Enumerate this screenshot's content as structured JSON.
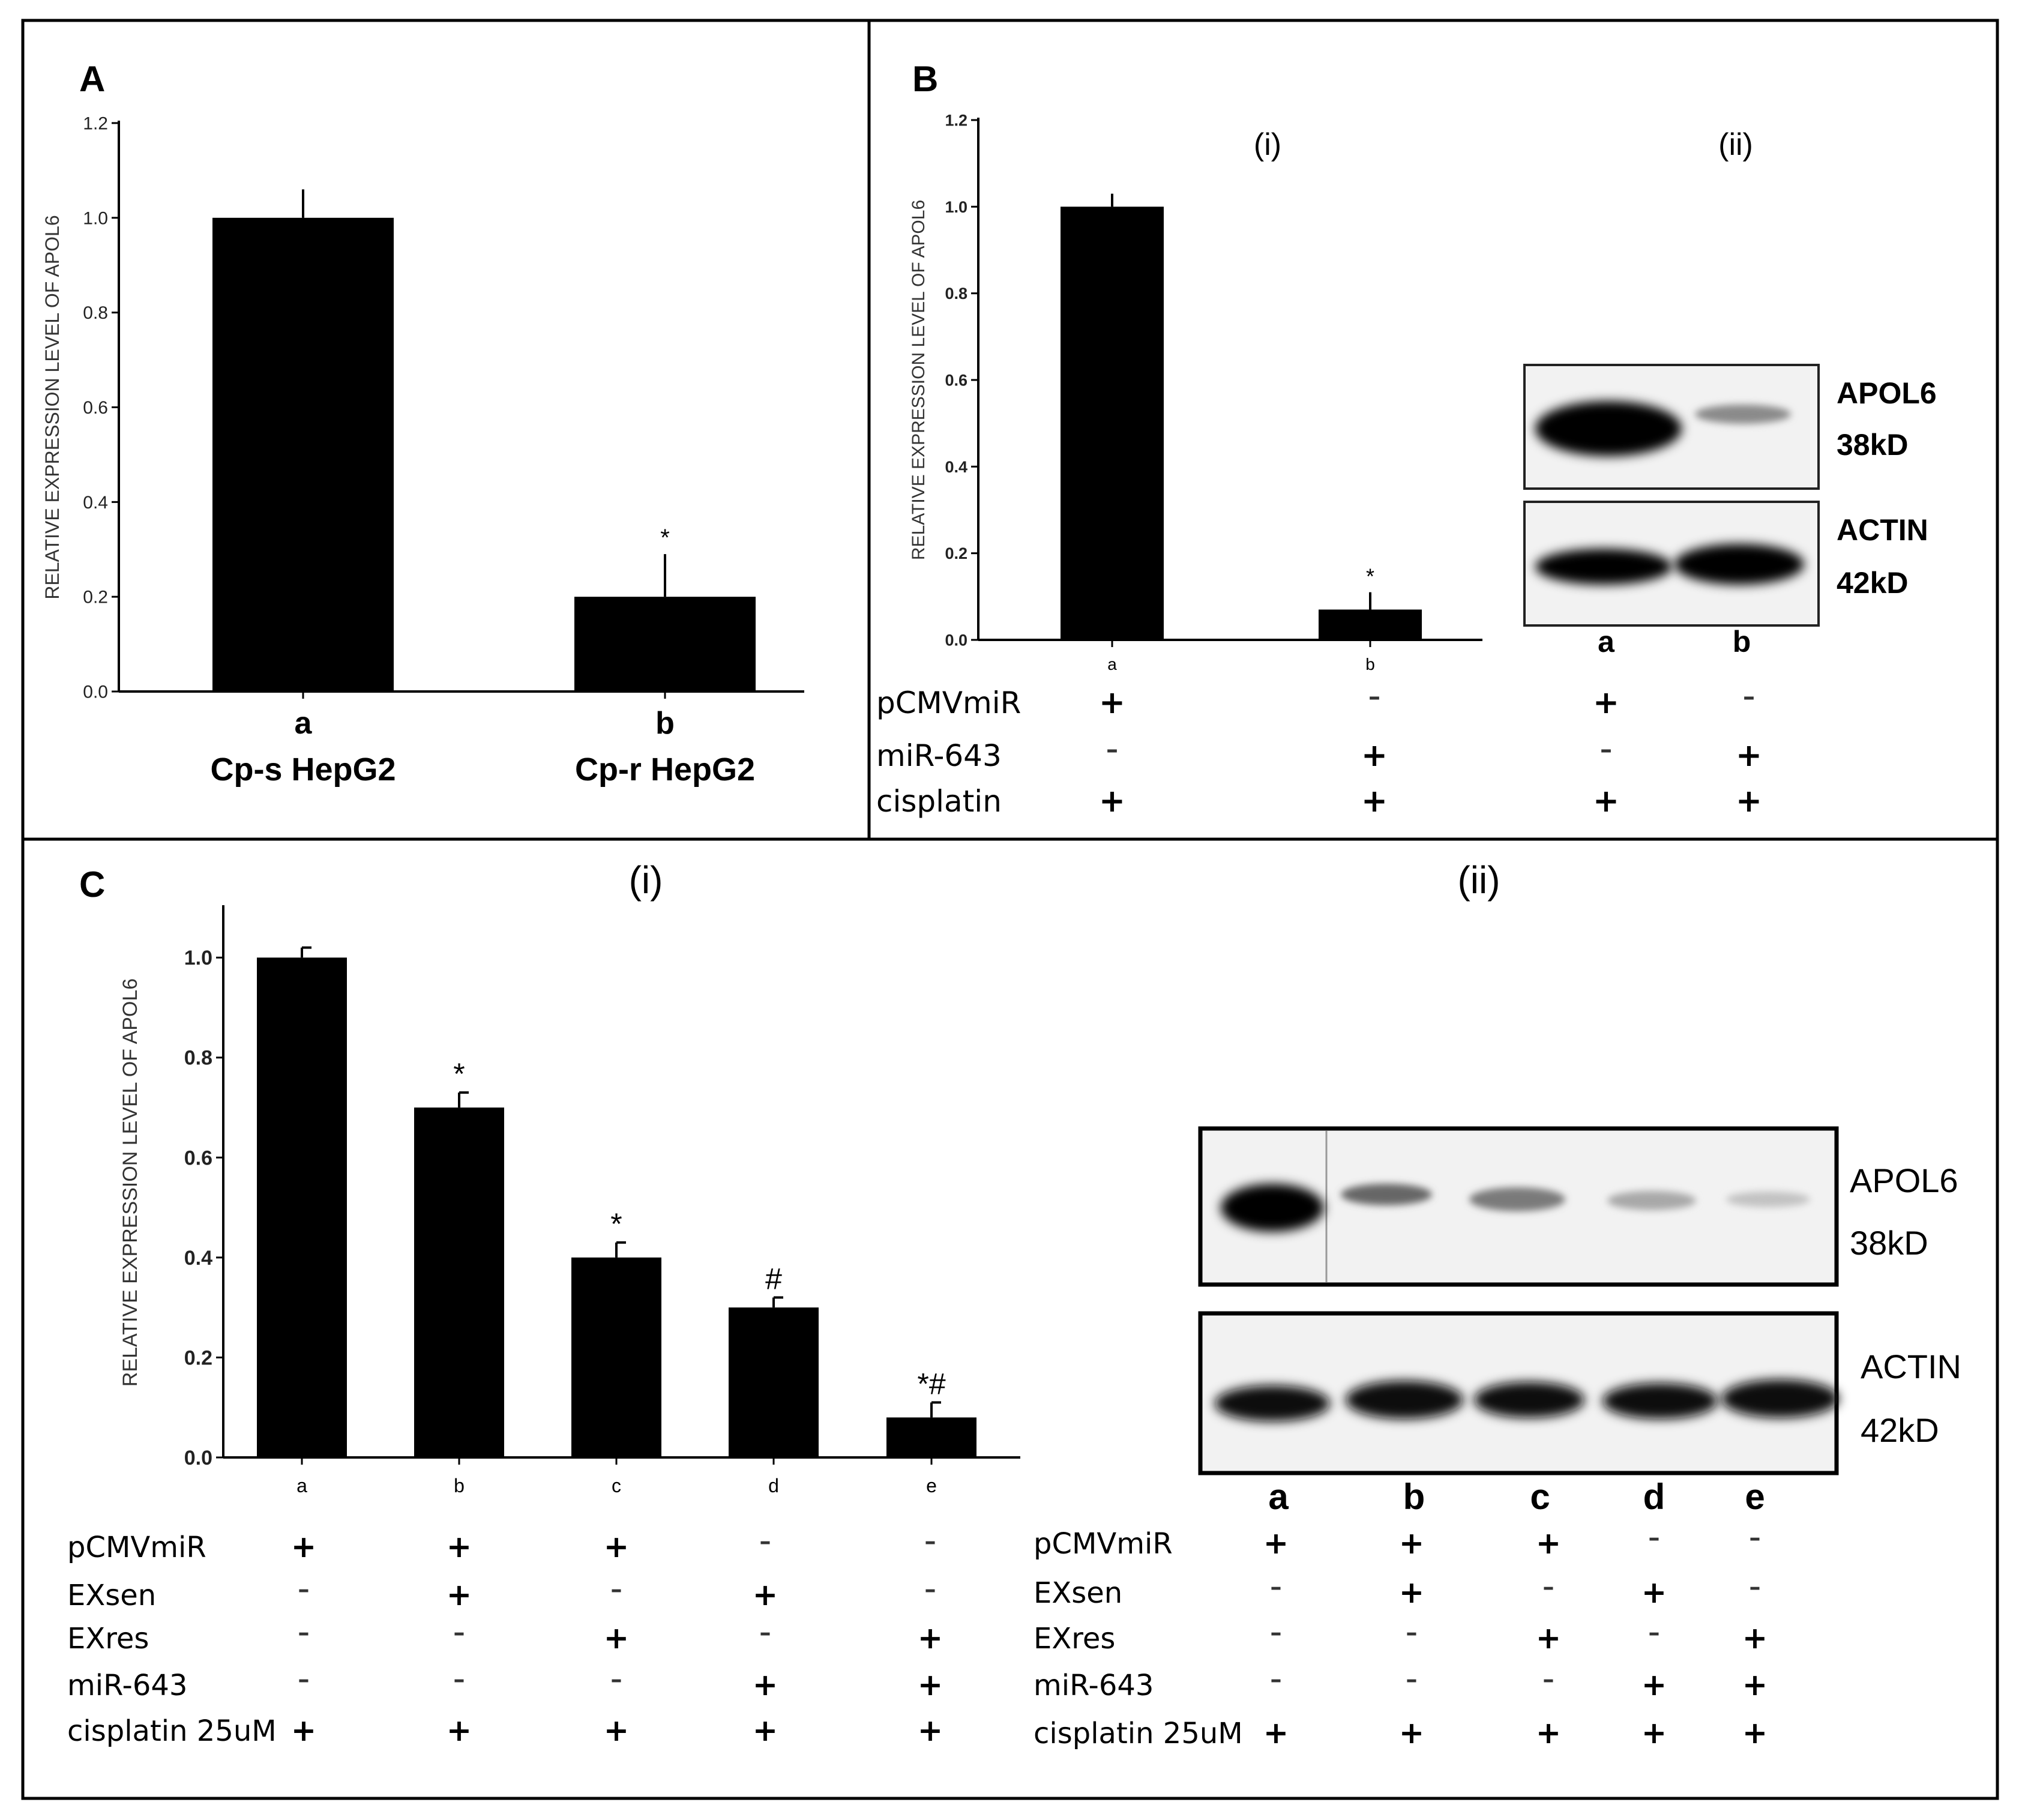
{
  "panels": {
    "A": {
      "letter": "A",
      "chart_data": {
        "type": "bar",
        "ylabel": "RELATIVE EXPRESSION LEVEL OF APOL6",
        "ylim": [
          0,
          1.2
        ],
        "yticks": [
          "0.0",
          "0.2",
          "0.4",
          "0.6",
          "0.8",
          "1.0",
          "1.2"
        ],
        "categories": [
          "a",
          "b"
        ],
        "category_names": [
          "Cp-s HepG2",
          "Cp-r HepG2"
        ],
        "values": [
          1.0,
          0.2
        ],
        "errors": [
          0.06,
          0.09
        ],
        "annotations": [
          "",
          "*"
        ],
        "bar_color": "#000000"
      }
    },
    "B": {
      "letter": "B",
      "sub_i": "(i)",
      "sub_ii": "(ii)",
      "chart_data": {
        "type": "bar",
        "ylabel": "RELATIVE EXPRESSION LEVEL OF APOL6",
        "ylim": [
          0,
          1.2
        ],
        "yticks": [
          "0.0",
          "0.2",
          "0.4",
          "0.6",
          "0.8",
          "1.0",
          "1.2"
        ],
        "categories": [
          "a",
          "b"
        ],
        "values": [
          1.0,
          0.07
        ],
        "errors": [
          0.03,
          0.04
        ],
        "annotations": [
          "",
          "*"
        ],
        "bar_color": "#000000"
      },
      "conditions": [
        {
          "label": "pCMVmiR",
          "signs": [
            "+",
            "–"
          ]
        },
        {
          "label": "miR-643",
          "signs": [
            "–",
            "+"
          ]
        },
        {
          "label": "cisplatin",
          "signs": [
            "+",
            "+"
          ]
        }
      ],
      "blot": {
        "lanes": [
          "a",
          "b"
        ],
        "bands": [
          {
            "name": "APOL6",
            "size": "38kD"
          },
          {
            "name": "ACTIN",
            "size": "42kD"
          }
        ],
        "conditions": [
          {
            "signs": [
              "+",
              "–"
            ]
          },
          {
            "signs": [
              "–",
              "+"
            ]
          },
          {
            "signs": [
              "+",
              "+"
            ]
          }
        ]
      }
    },
    "C": {
      "letter": "C",
      "sub_i": "(i)",
      "sub_ii": "(ii)",
      "chart_data": {
        "type": "bar",
        "ylabel": "RELATIVE EXPRESSION LEVEL OF APOL6",
        "ylim": [
          0,
          1.1
        ],
        "yticks": [
          "0.0",
          "0.2",
          "0.4",
          "0.6",
          "0.8",
          "1.0"
        ],
        "categories": [
          "a",
          "b",
          "c",
          "d",
          "e"
        ],
        "values": [
          1.0,
          0.7,
          0.4,
          0.3,
          0.08
        ],
        "errors": [
          0.02,
          0.03,
          0.03,
          0.02,
          0.03
        ],
        "annotations": [
          "",
          "*",
          "*",
          "#",
          "*#"
        ],
        "bar_color": "#000000"
      },
      "conditions": [
        {
          "label": "pCMVmiR",
          "signs": [
            "+",
            "+",
            "+",
            "–",
            "–"
          ]
        },
        {
          "label": "EXsen",
          "signs": [
            "–",
            "+",
            "–",
            "+",
            "–"
          ]
        },
        {
          "label": "EXres",
          "signs": [
            "–",
            "–",
            "+",
            "–",
            "+"
          ]
        },
        {
          "label": "miR-643",
          "signs": [
            "–",
            "–",
            "–",
            "+",
            "+"
          ]
        },
        {
          "label": "cisplatin 25uM",
          "signs": [
            "+",
            "+",
            "+",
            "+",
            "+"
          ]
        }
      ],
      "blot": {
        "lanes": [
          "a",
          "b",
          "c",
          "d",
          "e"
        ],
        "bands": [
          {
            "name": "APOL6",
            "size": "38kD"
          },
          {
            "name": "ACTIN",
            "size": "42kD"
          }
        ],
        "conditions": [
          {
            "label": "pCMVmiR",
            "signs": [
              "+",
              "+",
              "+",
              "–",
              "–"
            ]
          },
          {
            "label": "EXsen",
            "signs": [
              "–",
              "+",
              "–",
              "+",
              "–"
            ]
          },
          {
            "label": "EXres",
            "signs": [
              "–",
              "–",
              "+",
              "–",
              "+"
            ]
          },
          {
            "label": "miR-643",
            "signs": [
              "–",
              "–",
              "–",
              "+",
              "+"
            ]
          },
          {
            "label": "cisplatin 25uM",
            "signs": [
              "+",
              "+",
              "+",
              "+",
              "+"
            ]
          }
        ]
      }
    }
  }
}
